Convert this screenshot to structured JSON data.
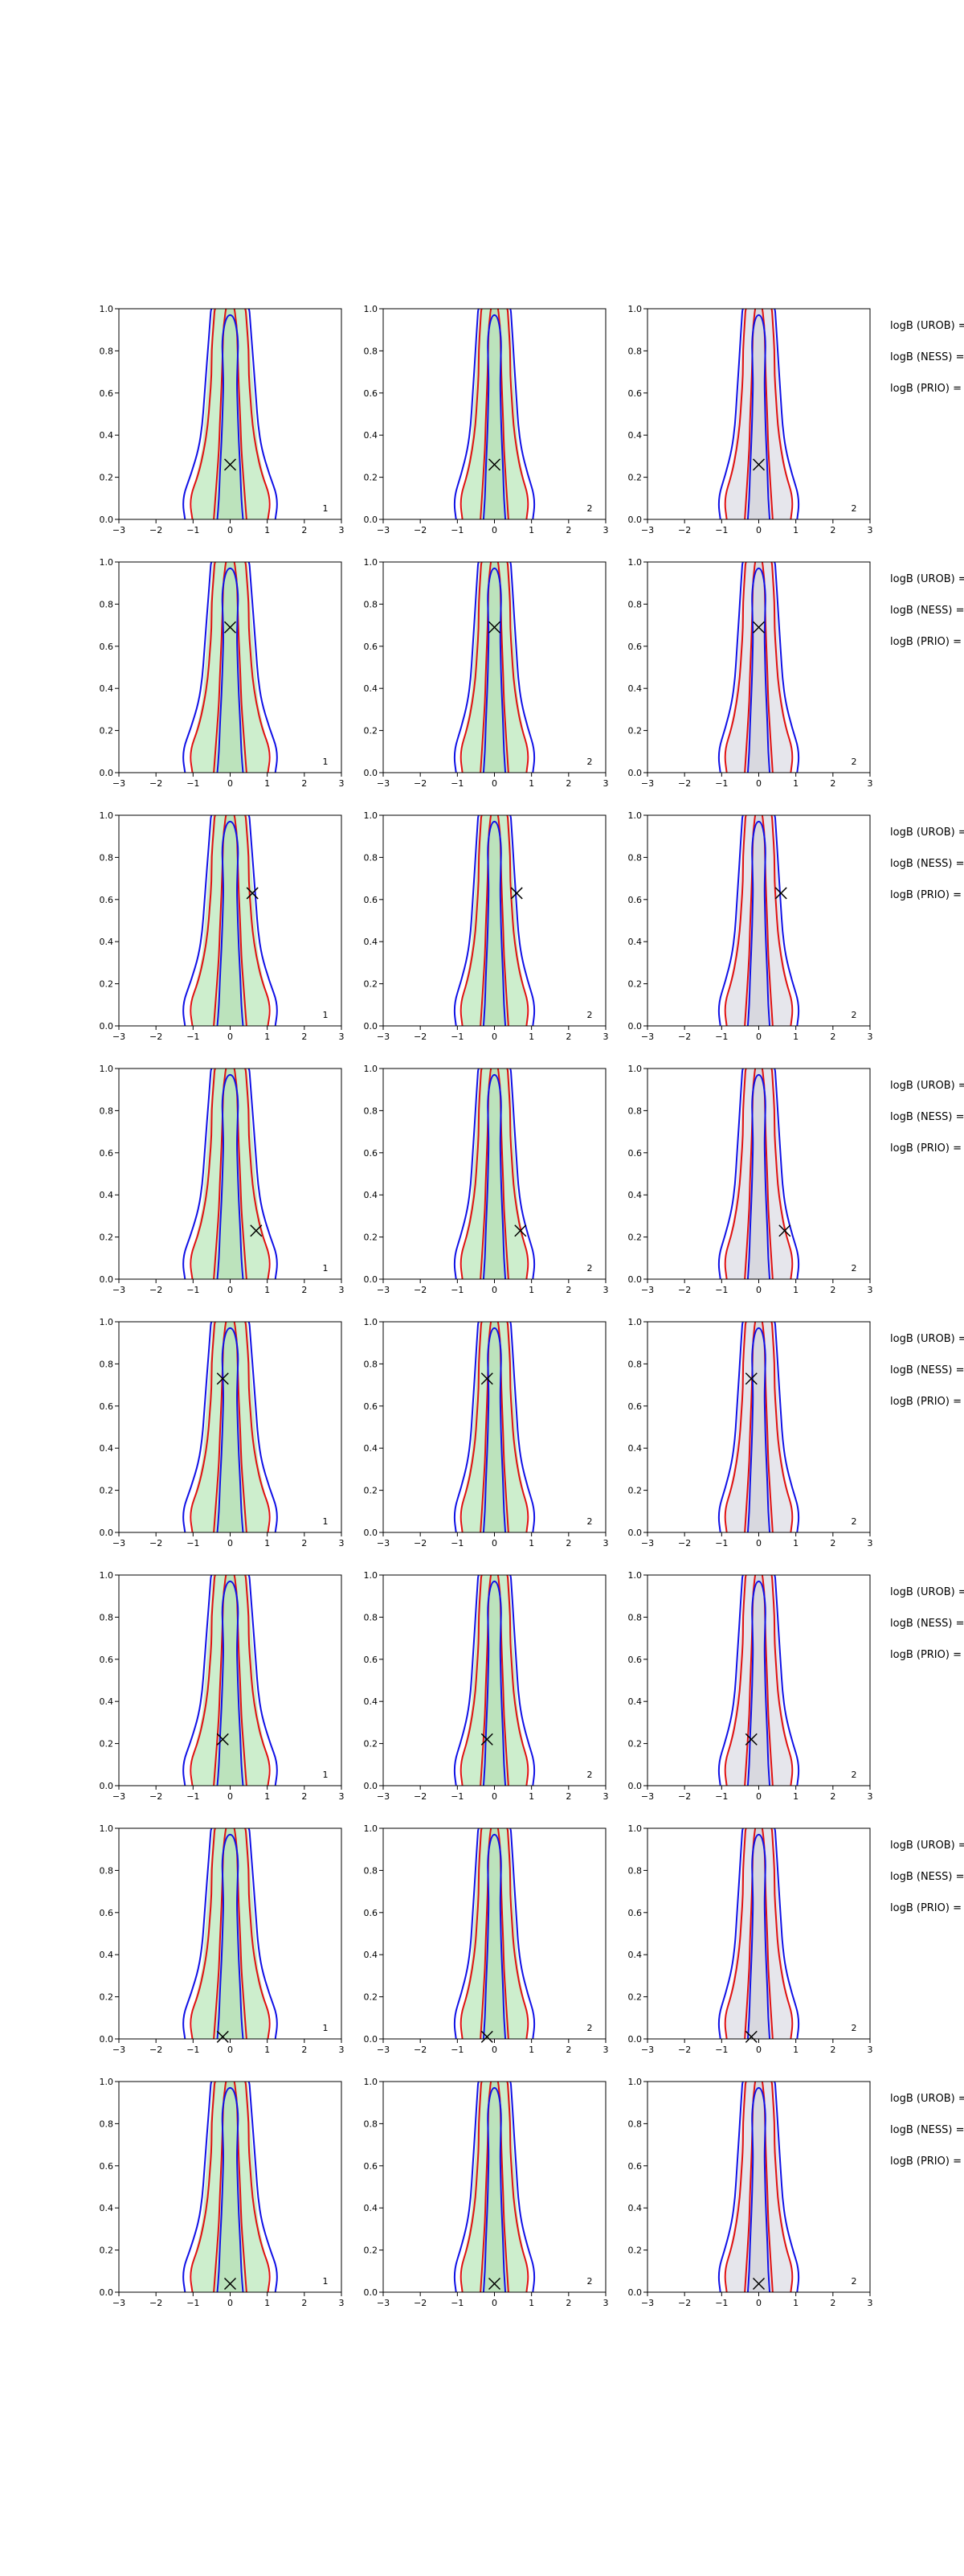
{
  "chart_data": {
    "type": "contour",
    "layout": {
      "rows": 8,
      "cols": 3
    },
    "xlim": [
      -3,
      3
    ],
    "ylim": [
      0,
      1
    ],
    "xticks": [
      "−3",
      "−2",
      "−1",
      "0",
      "1",
      "2",
      "3"
    ],
    "yticks": [
      "0.0",
      "0.2",
      "0.4",
      "0.6",
      "0.8",
      "1.0"
    ],
    "panel_labels": [
      "1",
      "2",
      "2"
    ],
    "row_texts": [
      "logB (UROB) =",
      "logB (NESS) =",
      "logB (PRIO) ="
    ],
    "colors": {
      "blue": "#1010e6",
      "red": "#e01010",
      "green_fill": "#cdeecd",
      "gray_fill": "#e6e6ec",
      "marker": "#000000"
    },
    "rows": [
      {
        "marker": [
          0.0,
          0.26
        ]
      },
      {
        "marker": [
          0.0,
          0.69
        ]
      },
      {
        "marker": [
          0.6,
          0.63
        ]
      },
      {
        "marker": [
          0.7,
          0.23
        ]
      },
      {
        "marker": [
          -0.2,
          0.73
        ]
      },
      {
        "marker": [
          -0.2,
          0.22
        ]
      },
      {
        "marker": [
          -0.2,
          0.01
        ]
      },
      {
        "marker": [
          0.0,
          0.04
        ]
      }
    ]
  }
}
